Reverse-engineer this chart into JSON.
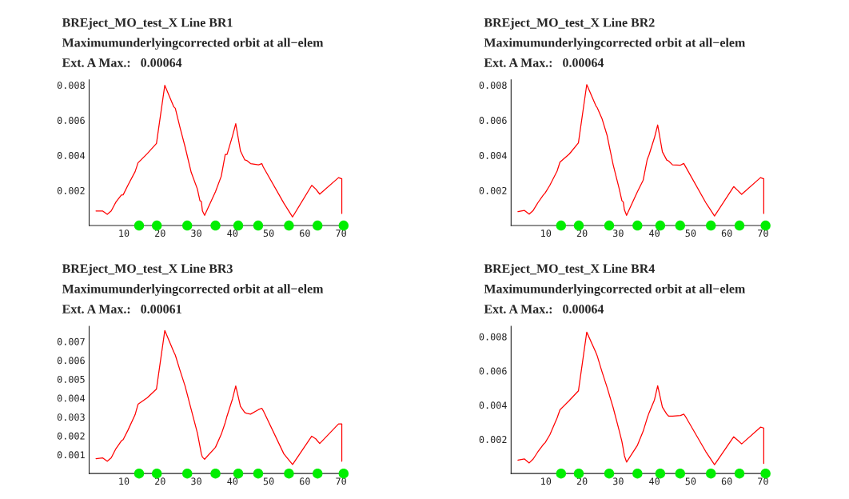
{
  "chart_data": [
    {
      "type": "line",
      "title": "BREject_MO_test_X Line BR1",
      "subtitle": "Maximumunderlyingcorrected orbit at all−elem",
      "annotations": [
        "Ext. A Max.:   0.00064"
      ],
      "xlim": [
        0.4,
        71
      ],
      "xticks": [
        10,
        20,
        30,
        40,
        50,
        60,
        70
      ],
      "ylim": [
        0,
        0.0083
      ],
      "yticks": [
        0.002,
        0.004,
        0.006,
        0.008
      ],
      "grid": false,
      "legend": false,
      "series": [
        {
          "color": "#ff0000",
          "line_style": "solid",
          "marker": "none",
          "x": [
            2.3,
            4.1,
            5.4,
            6.5,
            7.8,
            9.3,
            9.8,
            11.1,
            13.1,
            13.9,
            16.5,
            19.0,
            21.3,
            23.8,
            24.2,
            25.5,
            26.9,
            28.6,
            30.3,
            31.0,
            31.4,
            31.7,
            32.3,
            35.3,
            36.9,
            38.0,
            38.5,
            40.0,
            40.9,
            42.2,
            43.4,
            43.9,
            45.0,
            47.2,
            48.1,
            48.5,
            54.2,
            56.6,
            61.9,
            63.0,
            64.1,
            69.3,
            70.2,
            70.2
          ],
          "values": [
            0.00083,
            0.00083,
            0.00064,
            0.00083,
            0.00134,
            0.00174,
            0.00175,
            0.00229,
            0.00307,
            0.00357,
            0.00411,
            0.00468,
            0.00799,
            0.00676,
            0.00668,
            0.00559,
            0.00449,
            0.00303,
            0.00208,
            0.00142,
            0.00137,
            0.00083,
            0.00058,
            0.00193,
            0.00281,
            0.00405,
            0.00405,
            0.0051,
            0.0058,
            0.00425,
            0.00374,
            0.00371,
            0.00353,
            0.00346,
            0.00353,
            0.00334,
            0.00127,
            0.00049,
            0.00229,
            0.00208,
            0.00179,
            0.00273,
            0.00266,
            0.00069
          ]
        },
        {
          "type": "scatter",
          "color": "#00ee00",
          "marker": "circle",
          "x": [
            14.2,
            19.1,
            27.5,
            35.3,
            41.6,
            47.1,
            55.6,
            63.5,
            70.7
          ],
          "values": [
            0,
            0,
            0,
            0,
            0,
            0,
            0,
            0,
            0
          ]
        }
      ]
    },
    {
      "type": "line",
      "title": "BREject_MO_test_X Line BR2",
      "subtitle": "Maximumunderlyingcorrected orbit at all−elem",
      "annotations": [
        "Ext. A Max.:   0.00064"
      ],
      "xlim": [
        0.4,
        71
      ],
      "xticks": [
        10,
        20,
        30,
        40,
        50,
        60,
        70
      ],
      "ylim": [
        0,
        0.0083
      ],
      "yticks": [
        0.002,
        0.004,
        0.006,
        0.008
      ],
      "grid": false,
      "legend": false,
      "series": [
        {
          "color": "#ff0000",
          "line_style": "solid",
          "marker": "none",
          "x": [
            2.3,
            4.1,
            5.4,
            6.5,
            7.8,
            9.3,
            9.8,
            11.1,
            13.1,
            13.9,
            16.5,
            19.0,
            21.3,
            23.8,
            24.2,
            25.5,
            26.9,
            28.6,
            30.3,
            31.0,
            31.4,
            31.7,
            32.3,
            35.3,
            36.9,
            38.0,
            38.5,
            40.0,
            40.9,
            42.2,
            43.4,
            43.9,
            45.0,
            47.2,
            48.1,
            48.5,
            54.2,
            56.6,
            61.9,
            63.0,
            64.1,
            69.3,
            70.2,
            70.2
          ],
          "values": [
            0.00079,
            0.00086,
            0.00065,
            0.00086,
            0.0013,
            0.00174,
            0.00185,
            0.00229,
            0.0031,
            0.00361,
            0.00408,
            0.00471,
            0.00803,
            0.00683,
            0.00671,
            0.0061,
            0.00515,
            0.00346,
            0.00207,
            0.00142,
            0.00134,
            0.0009,
            0.00058,
            0.00193,
            0.00259,
            0.00376,
            0.00402,
            0.005,
            0.00573,
            0.0042,
            0.00373,
            0.00368,
            0.00346,
            0.00344,
            0.00354,
            0.00339,
            0.0013,
            0.00054,
            0.00222,
            0.002,
            0.00178,
            0.00273,
            0.00266,
            0.00069
          ]
        },
        {
          "type": "scatter",
          "color": "#00ee00",
          "marker": "circle",
          "x": [
            14.2,
            19.1,
            27.5,
            35.3,
            41.6,
            47.1,
            55.6,
            63.5,
            70.7
          ],
          "values": [
            0,
            0,
            0,
            0,
            0,
            0,
            0,
            0,
            0
          ]
        }
      ]
    },
    {
      "type": "line",
      "title": "BREject_MO_test_X Line BR3",
      "subtitle": "Maximumunderlyingcorrected orbit at all−elem",
      "annotations": [
        "Ext. A Max.:   0.00061"
      ],
      "xlim": [
        0.4,
        71
      ],
      "xticks": [
        10,
        20,
        30,
        40,
        50,
        60,
        70
      ],
      "ylim": [
        0,
        0.0078
      ],
      "yticks": [
        0.001,
        0.002,
        0.003,
        0.004,
        0.005,
        0.006,
        0.007
      ],
      "grid": false,
      "legend": false,
      "series": [
        {
          "color": "#ff0000",
          "line_style": "solid",
          "marker": "none",
          "x": [
            2.3,
            4.1,
            5.4,
            6.5,
            7.8,
            9.3,
            9.8,
            11.1,
            13.1,
            13.9,
            16.5,
            19.0,
            21.3,
            23.8,
            24.2,
            25.5,
            26.9,
            28.6,
            30.3,
            31.0,
            31.4,
            31.7,
            32.3,
            35.3,
            36.9,
            38.0,
            38.5,
            40.0,
            40.9,
            42.2,
            43.4,
            43.9,
            45.0,
            47.2,
            48.1,
            48.5,
            54.2,
            56.6,
            61.9,
            63.0,
            64.1,
            69.3,
            70.2,
            70.2
          ],
          "values": [
            0.00079,
            0.00083,
            0.00065,
            0.00083,
            0.00132,
            0.00173,
            0.0018,
            0.00229,
            0.00312,
            0.00367,
            0.00402,
            0.00448,
            0.00758,
            0.00644,
            0.00628,
            0.00547,
            0.00464,
            0.00339,
            0.00215,
            0.00145,
            0.00104,
            0.00087,
            0.00076,
            0.00139,
            0.00208,
            0.0027,
            0.00305,
            0.00395,
            0.00464,
            0.00356,
            0.00323,
            0.00319,
            0.00315,
            0.00339,
            0.00346,
            0.00333,
            0.00104,
            0.00048,
            0.00198,
            0.00184,
            0.00159,
            0.00263,
            0.00263,
            0.00065
          ]
        },
        {
          "type": "scatter",
          "color": "#00ee00",
          "marker": "circle",
          "x": [
            14.2,
            19.1,
            27.5,
            35.3,
            41.6,
            47.1,
            55.6,
            63.5,
            70.7
          ],
          "values": [
            0,
            0,
            0,
            0,
            0,
            0,
            0,
            0,
            0
          ]
        }
      ]
    },
    {
      "type": "line",
      "title": "BREject_MO_test_X Line BR4",
      "subtitle": "Maximumunderlyingcorrected orbit at all−elem",
      "annotations": [
        "Ext. A Max.:   0.00064"
      ],
      "xlim": [
        0.4,
        71
      ],
      "xticks": [
        10,
        20,
        30,
        40,
        50,
        60,
        70
      ],
      "ylim": [
        0,
        0.0086
      ],
      "yticks": [
        0.002,
        0.004,
        0.006,
        0.008
      ],
      "grid": false,
      "legend": false,
      "series": [
        {
          "color": "#ff0000",
          "line_style": "solid",
          "marker": "none",
          "x": [
            2.3,
            4.1,
            5.4,
            6.5,
            7.8,
            9.3,
            9.8,
            11.1,
            13.1,
            13.9,
            16.5,
            19.0,
            21.3,
            23.8,
            24.2,
            25.5,
            26.9,
            28.6,
            30.3,
            31.0,
            31.4,
            31.7,
            32.3,
            35.3,
            36.9,
            38.0,
            38.5,
            40.0,
            40.9,
            42.2,
            43.4,
            43.9,
            45.0,
            47.2,
            48.1,
            48.5,
            54.2,
            56.6,
            61.9,
            63.0,
            64.1,
            69.3,
            70.2,
            70.2
          ],
          "values": [
            0.00078,
            0.00085,
            0.00062,
            0.00085,
            0.00127,
            0.0017,
            0.0018,
            0.00226,
            0.00324,
            0.00372,
            0.00427,
            0.00483,
            0.00826,
            0.00709,
            0.00687,
            0.00596,
            0.00505,
            0.00385,
            0.00248,
            0.00188,
            0.00143,
            0.00105,
            0.00067,
            0.00165,
            0.00248,
            0.00324,
            0.00354,
            0.0043,
            0.00513,
            0.00388,
            0.00347,
            0.00336,
            0.00336,
            0.00339,
            0.00347,
            0.00336,
            0.00128,
            0.00052,
            0.00215,
            0.00195,
            0.00173,
            0.00271,
            0.00266,
            0.00059
          ]
        },
        {
          "type": "scatter",
          "color": "#00ee00",
          "marker": "circle",
          "x": [
            14.2,
            19.1,
            27.5,
            35.3,
            41.6,
            47.1,
            55.6,
            63.5,
            70.7
          ],
          "values": [
            0,
            0,
            0,
            0,
            0,
            0,
            0,
            0,
            0
          ]
        }
      ]
    }
  ]
}
